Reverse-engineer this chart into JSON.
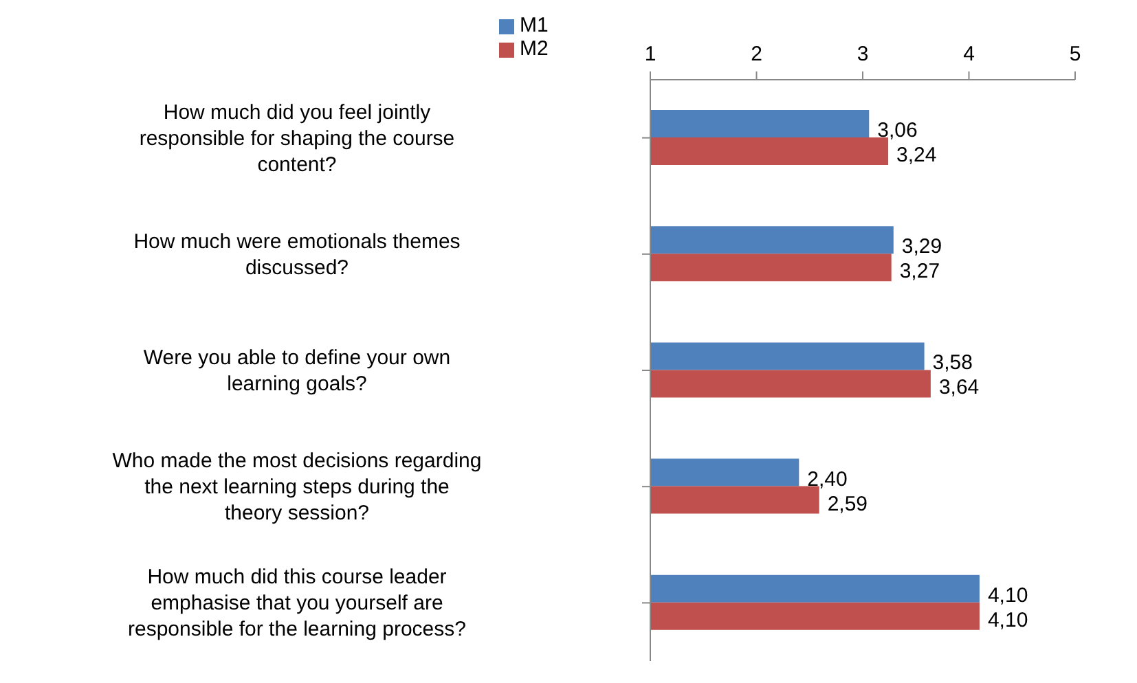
{
  "chart_data": {
    "type": "bar",
    "orientation": "horizontal",
    "categories": [
      "How much did you feel jointly responsible for shaping the course content?",
      "How much were emotionals themes discussed?",
      "Were you able to define your own learning goals?",
      "Who made the most decisions regarding the next learning steps during the theory session?",
      "How much did this course leader emphasise that you yourself are responsible for the learning process?"
    ],
    "series": [
      {
        "name": "M1",
        "color": "#4f81bd",
        "axis": "x2",
        "values": [
          3.06,
          3.29,
          3.58,
          2.4,
          4.1
        ],
        "value_labels": [
          "3,06",
          "3,29",
          "3,58",
          "2,40",
          "4,10"
        ]
      },
      {
        "name": "M2",
        "color": "#c0504d",
        "axis": "x2",
        "values": [
          3.24,
          3.27,
          3.64,
          2.59,
          4.1
        ],
        "value_labels": [
          "3,24",
          "3,27",
          "3,64",
          "2,59",
          "4,10"
        ]
      }
    ],
    "x2lim": [
      1,
      5
    ],
    "x2ticks": [
      1,
      2,
      3,
      4,
      5
    ],
    "grid": false,
    "legend": "top left"
  }
}
